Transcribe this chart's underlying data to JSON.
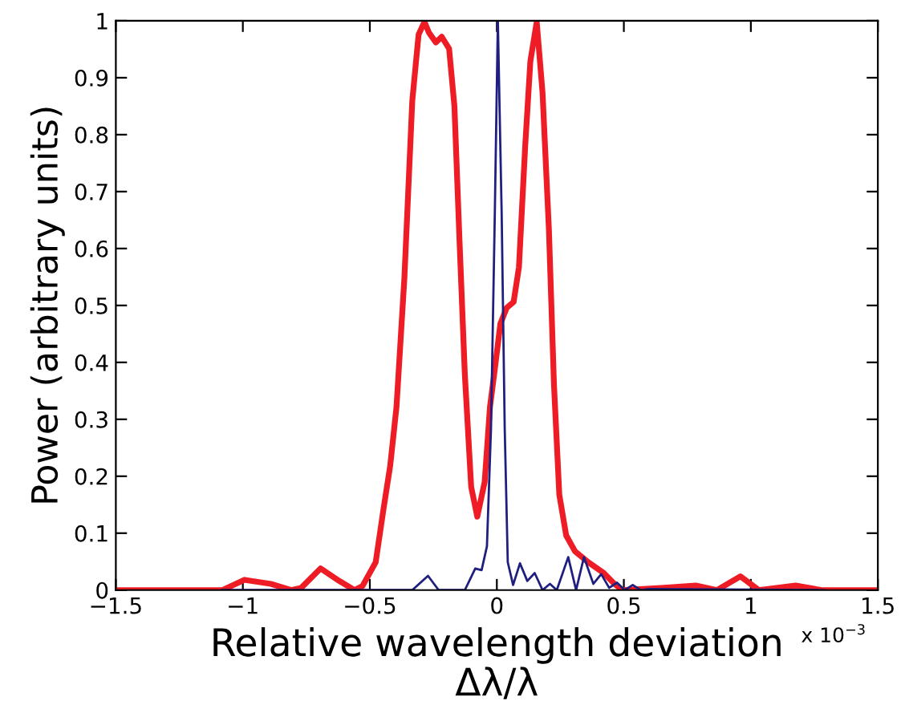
{
  "chart_data": {
    "type": "line",
    "xlabel": "Relative wavelength deviation\nΔλ/λ",
    "ylabel": "Power (arbitrary units)",
    "annotations": [
      "x 10$^{−3}$"
    ],
    "xlim": [
      -1.5,
      1.5
    ],
    "xticks": [
      -1.5,
      -1,
      -0.5,
      0,
      0.5,
      1,
      1.5
    ],
    "ylim": [
      0,
      1
    ],
    "yticks": [
      0,
      0.1,
      0.2,
      0.3,
      0.4,
      0.5,
      0.6,
      0.7,
      0.8,
      0.9,
      1
    ],
    "grid": false,
    "marker": "none",
    "line_style": "solid",
    "series": [
      {
        "color": "#ee1c25",
        "x": [
          -1.5,
          -1.08,
          -0.994,
          -0.89,
          -0.81,
          -0.77,
          -0.694,
          -0.62,
          -0.56,
          -0.529,
          -0.477,
          -0.446,
          -0.42,
          -0.395,
          -0.364,
          -0.333,
          -0.308,
          -0.285,
          -0.267,
          -0.24,
          -0.217,
          -0.188,
          -0.167,
          -0.147,
          -0.126,
          -0.101,
          -0.077,
          -0.048,
          -0.027,
          -0.008,
          0.014,
          0.039,
          0.066,
          0.087,
          0.112,
          0.132,
          0.157,
          0.18,
          0.205,
          0.225,
          0.246,
          0.273,
          0.308,
          0.36,
          0.421,
          0.463,
          0.494,
          0.659,
          0.783,
          0.866,
          0.959,
          1.031,
          1.176,
          1.279,
          1.5
        ],
        "values": [
          0,
          0,
          0.018,
          0.011,
          0,
          0.004,
          0.038,
          0.016,
          0,
          0.007,
          0.049,
          0.143,
          0.218,
          0.322,
          0.548,
          0.859,
          0.976,
          0.998,
          0.979,
          0.962,
          0.972,
          0.951,
          0.85,
          0.614,
          0.379,
          0.181,
          0.129,
          0.19,
          0.322,
          0.388,
          0.468,
          0.496,
          0.506,
          0.567,
          0.783,
          0.929,
          0.998,
          0.873,
          0.633,
          0.36,
          0.167,
          0.096,
          0.068,
          0.049,
          0.03,
          0.011,
          0,
          0.004,
          0.008,
          0,
          0.024,
          0,
          0.008,
          0,
          0
        ]
      },
      {
        "color": "#1f1f80",
        "x": [
          -1.08,
          -0.333,
          -0.271,
          -0.229,
          -0.126,
          -0.085,
          -0.06,
          -0.039,
          -0.023,
          -0.008,
          0.004,
          0.019,
          0.031,
          0.043,
          0.064,
          0.091,
          0.12,
          0.149,
          0.18,
          0.209,
          0.236,
          0.281,
          0.312,
          0.343,
          0.38,
          0.411,
          0.442,
          0.473,
          0.504,
          0.535,
          0.566,
          0.597,
          1.289
        ],
        "values": [
          0,
          0,
          0.025,
          0,
          0,
          0.038,
          0.035,
          0.077,
          0.284,
          0.661,
          1.0,
          0.661,
          0.284,
          0.049,
          0.009,
          0.047,
          0.016,
          0.03,
          0,
          0.011,
          0,
          0.058,
          0,
          0.058,
          0.011,
          0.028,
          0.004,
          0.013,
          0,
          0.009,
          0,
          0.002,
          0
        ]
      }
    ]
  }
}
